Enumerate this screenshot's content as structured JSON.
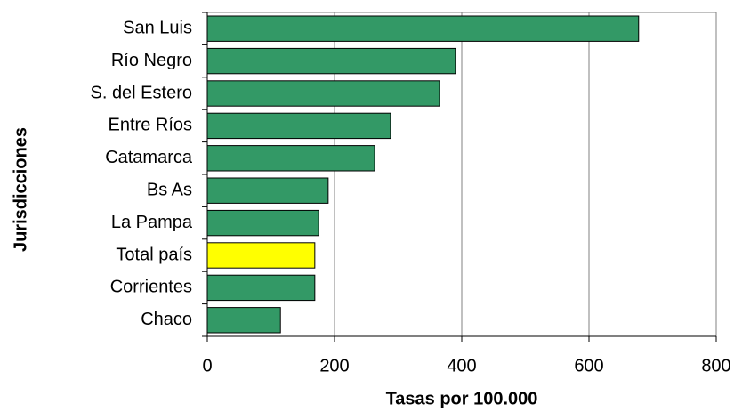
{
  "chart_data": {
    "type": "hbar",
    "x_label": "Tasas por 100.000",
    "y_label": "Jurisdicciones",
    "categories": [
      "San Luis",
      "Río Negro",
      "S. del Estero",
      "Entre Ríos",
      "Catamarca",
      "Bs As",
      "La Pampa",
      "Total país",
      "Corrientes",
      "Chaco"
    ],
    "values": [
      678,
      390,
      365,
      288,
      263,
      190,
      175,
      169,
      169,
      115
    ],
    "colors": [
      "#339966",
      "#339966",
      "#339966",
      "#339966",
      "#339966",
      "#339966",
      "#339966",
      "#ffff00",
      "#339966",
      "#339966"
    ],
    "xlim": [
      0,
      800
    ],
    "xticks": [
      0,
      200,
      400,
      600,
      800
    ],
    "grid": true
  }
}
